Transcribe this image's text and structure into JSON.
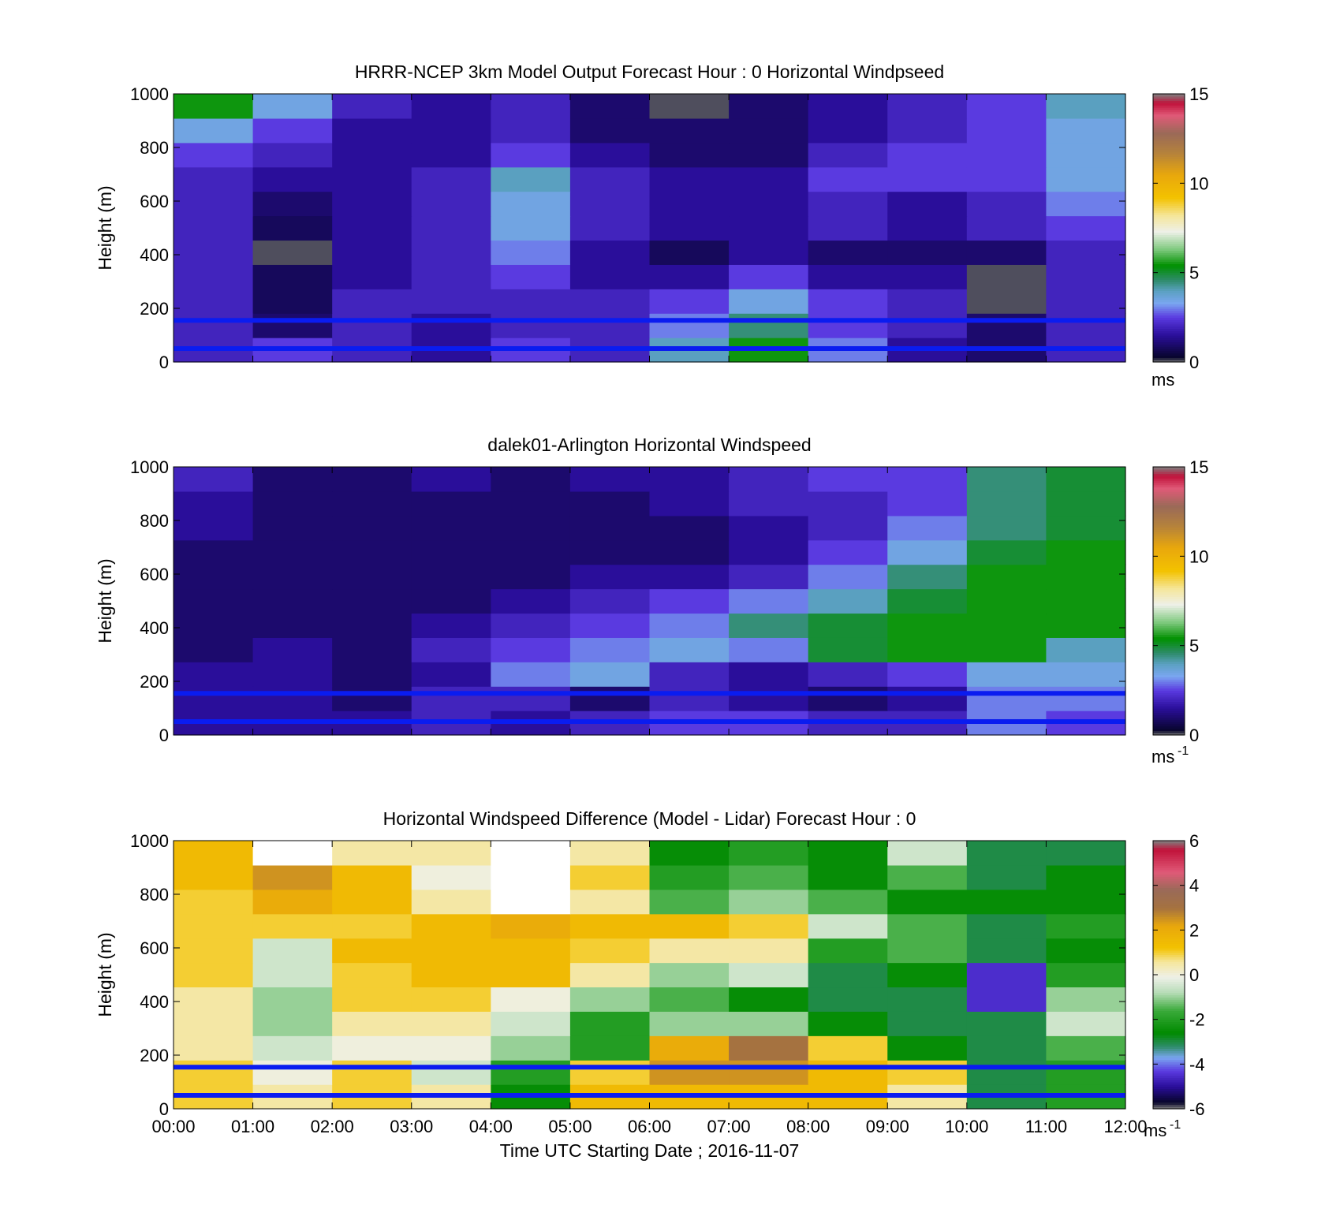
{
  "chart_data": [
    {
      "type": "heatmap",
      "title": "HRRR-NCEP 3km Model Output   Forecast Hour : 0 Horizontal Windpseed",
      "ylabel": "Height (m)",
      "xlabel": "",
      "ylim": [
        0,
        1000
      ],
      "yticks": [
        0,
        200,
        400,
        600,
        800,
        1000
      ],
      "x_hours": [
        0,
        1,
        2,
        3,
        4,
        5,
        6,
        7,
        8,
        9,
        10,
        11,
        12
      ],
      "colorbar": {
        "min": 0,
        "max": 15,
        "ticks": [
          0,
          5,
          10,
          15
        ],
        "unit": "ms",
        "unit_sup": ""
      },
      "reference_lines_m": [
        50,
        155
      ],
      "values_ms": [
        [
          2.0,
          2.5,
          2.0,
          1.5,
          2.5,
          2.0,
          4.0,
          5.5,
          3.0,
          1.5,
          1.0,
          2.0
        ],
        [
          2.0,
          1.0,
          2.0,
          1.5,
          2.0,
          2.0,
          3.0,
          4.5,
          2.5,
          2.0,
          1.0,
          2.0
        ],
        [
          2.0,
          0.8,
          2.0,
          2.0,
          2.0,
          2.0,
          2.5,
          3.5,
          2.5,
          2.0,
          0.1,
          2.0
        ],
        [
          2.0,
          0.8,
          1.5,
          2.0,
          2.5,
          1.5,
          1.5,
          2.5,
          1.5,
          1.5,
          0.1,
          2.0
        ],
        [
          2.0,
          0.1,
          1.5,
          2.0,
          3.0,
          1.5,
          0.8,
          1.5,
          1.0,
          1.0,
          1.0,
          2.0
        ],
        [
          2.0,
          0.8,
          1.5,
          2.0,
          3.5,
          2.0,
          1.5,
          1.5,
          2.0,
          1.5,
          2.0,
          2.5
        ],
        [
          2.0,
          1.0,
          1.5,
          2.0,
          3.5,
          2.0,
          1.5,
          1.5,
          2.0,
          1.5,
          2.0,
          3.0
        ],
        [
          2.0,
          1.5,
          1.5,
          2.0,
          4.0,
          2.0,
          1.5,
          1.5,
          2.5,
          2.5,
          2.5,
          3.5
        ],
        [
          2.5,
          2.0,
          1.5,
          1.5,
          2.5,
          1.5,
          1.0,
          1.0,
          2.0,
          2.5,
          2.5,
          3.5
        ],
        [
          3.5,
          2.5,
          1.5,
          1.5,
          2.0,
          1.0,
          1.0,
          1.0,
          1.5,
          2.0,
          2.5,
          3.5
        ],
        [
          5.5,
          3.5,
          2.0,
          1.5,
          2.0,
          1.0,
          0.1,
          1.0,
          1.5,
          2.0,
          2.5,
          4.0
        ]
      ]
    },
    {
      "type": "heatmap",
      "title": "dalek01-Arlington  Horizontal Windspeed",
      "ylabel": "Height (m)",
      "xlabel": "",
      "ylim": [
        0,
        1000
      ],
      "yticks": [
        0,
        200,
        400,
        600,
        800,
        1000
      ],
      "x_hours": [
        0,
        1,
        2,
        3,
        4,
        5,
        6,
        7,
        8,
        9,
        10,
        11,
        12
      ],
      "colorbar": {
        "min": 0,
        "max": 15,
        "ticks": [
          0,
          5,
          10,
          15
        ],
        "unit": "ms",
        "unit_sup": "-1"
      },
      "reference_lines_m": [
        50,
        155
      ],
      "values_ms": [
        [
          1.5,
          1.5,
          1.5,
          2.0,
          1.5,
          2.0,
          2.5,
          2.5,
          2.0,
          2.0,
          3.0,
          2.5
        ],
        [
          1.5,
          1.5,
          1.0,
          2.0,
          2.0,
          1.0,
          2.0,
          1.5,
          1.0,
          1.5,
          3.0,
          3.0
        ],
        [
          1.5,
          1.5,
          1.0,
          1.5,
          3.0,
          3.5,
          2.0,
          1.5,
          2.0,
          2.5,
          3.5,
          3.5
        ],
        [
          1.0,
          1.5,
          1.0,
          2.0,
          2.5,
          3.0,
          3.5,
          3.0,
          5.0,
          5.5,
          5.5,
          4.0
        ],
        [
          1.0,
          1.0,
          1.0,
          1.5,
          2.0,
          2.5,
          3.0,
          4.5,
          5.0,
          5.5,
          5.5,
          5.5
        ],
        [
          1.0,
          1.0,
          1.0,
          1.0,
          1.5,
          2.0,
          2.5,
          3.0,
          4.0,
          5.0,
          5.5,
          5.5
        ],
        [
          1.0,
          1.0,
          1.0,
          1.0,
          1.0,
          1.5,
          1.5,
          2.0,
          3.0,
          4.5,
          5.5,
          5.5
        ],
        [
          1.0,
          1.0,
          1.0,
          1.0,
          1.0,
          1.0,
          1.0,
          1.5,
          2.5,
          3.5,
          5.0,
          5.5
        ],
        [
          1.5,
          1.0,
          1.0,
          1.0,
          1.0,
          1.0,
          1.0,
          1.5,
          2.0,
          3.0,
          4.5,
          5.0
        ],
        [
          1.5,
          1.0,
          1.0,
          1.0,
          1.0,
          1.0,
          1.5,
          2.0,
          2.0,
          2.5,
          4.5,
          5.0
        ],
        [
          2.0,
          1.0,
          1.0,
          1.5,
          1.0,
          1.5,
          1.5,
          2.0,
          2.5,
          2.5,
          4.5,
          5.0
        ]
      ]
    },
    {
      "type": "heatmap",
      "title": "Horizontal Windspeed Difference (Model - Lidar) Forecast Hour : 0",
      "ylabel": "Height (m)",
      "xlabel": "Time UTC  Starting Date ; 2016-11-07",
      "ylim": [
        0,
        1000
      ],
      "yticks": [
        0,
        200,
        400,
        600,
        800,
        1000
      ],
      "x_hours": [
        0,
        1,
        2,
        3,
        4,
        5,
        6,
        7,
        8,
        9,
        10,
        11,
        12
      ],
      "xticklabels": [
        "00:00",
        "01:00",
        "02:00",
        "03:00",
        "04:00",
        "05:00",
        "06:00",
        "07:00",
        "08:00",
        "09:00",
        "10:00",
        "11:00",
        "12:00"
      ],
      "colorbar": {
        "min": -6,
        "max": 6,
        "ticks": [
          -6,
          -4,
          -2,
          0,
          2,
          4,
          6
        ],
        "unit": "ms",
        "unit_sup": "-1"
      },
      "reference_lines_m": [
        50,
        155
      ],
      "values_ms": [
        [
          1.0,
          0.5,
          1.0,
          0.5,
          -2.5,
          1.5,
          1.5,
          1.5,
          1.5,
          0.5,
          -3.0,
          -2.0
        ],
        [
          1.0,
          0.0,
          1.0,
          -0.5,
          -2.0,
          1.0,
          2.5,
          2.5,
          1.5,
          1.0,
          -3.0,
          -2.0
        ],
        [
          0.5,
          -0.5,
          0.0,
          0.0,
          -1.0,
          -2.0,
          2.0,
          3.0,
          1.0,
          -2.5,
          -3.0,
          -1.5
        ],
        [
          0.5,
          -1.0,
          0.5,
          0.5,
          -0.5,
          -2.0,
          -1.0,
          -1.0,
          -2.5,
          -3.0,
          -3.0,
          -0.5
        ],
        [
          0.5,
          -1.0,
          1.0,
          1.0,
          0.0,
          -1.0,
          -1.5,
          -2.5,
          -3.0,
          -3.0,
          -4.5,
          -1.0
        ],
        [
          1.0,
          -0.5,
          1.0,
          1.5,
          1.5,
          0.5,
          -1.0,
          -0.5,
          -3.0,
          -2.5,
          -4.5,
          -2.0
        ],
        [
          1.0,
          -0.5,
          1.5,
          1.5,
          1.5,
          1.0,
          0.5,
          0.5,
          -2.0,
          -1.5,
          -3.0,
          -2.5
        ],
        [
          1.0,
          1.0,
          1.0,
          1.5,
          2.0,
          1.5,
          1.5,
          1.0,
          -0.5,
          -1.5,
          -3.0,
          -2.0
        ],
        [
          1.0,
          2.0,
          1.5,
          0.5,
          null,
          0.5,
          -1.5,
          -1.0,
          -1.5,
          -2.5,
          -2.5,
          -2.5
        ],
        [
          1.5,
          2.5,
          1.5,
          0.0,
          null,
          1.0,
          -2.0,
          -1.5,
          -2.5,
          -1.5,
          -3.0,
          -2.5
        ],
        [
          1.5,
          null,
          0.5,
          0.5,
          null,
          0.5,
          -2.5,
          -2.0,
          -2.5,
          -0.5,
          -3.0,
          -3.0
        ]
      ]
    }
  ]
}
